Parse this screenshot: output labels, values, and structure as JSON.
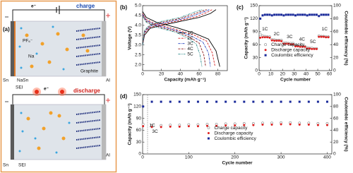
{
  "schematic": {
    "panel_label": "(a)",
    "top": {
      "electron": "e⁻",
      "state": "charge",
      "anion": "PF₆⁻",
      "cation": "Na",
      "cathode": "Graphite",
      "collector": "Al",
      "anode": "Sn",
      "alloy": "NaSn",
      "sei": "SEI"
    },
    "bottom": {
      "electron": "e⁻",
      "state": "discharge",
      "collector": "Al",
      "anode": "Sn",
      "sei": "SEI"
    }
  },
  "chart_data": [
    {
      "type": "line",
      "panel_label": "(b)",
      "xlabel": "Capacity (mAh g⁻¹)",
      "ylabel": "Voltage (V)",
      "xlim": [
        0,
        90
      ],
      "xticks": [
        0,
        20,
        40,
        60,
        80
      ],
      "ylim": [
        1.7,
        5.0
      ],
      "yticks": [
        {
          "value": 2,
          "label": "2.0"
        },
        2.5,
        {
          "value": 3,
          "label": "3.0"
        },
        3.5,
        {
          "value": 4,
          "label": "4.0"
        },
        4.5,
        {
          "value": 5,
          "label": "5.0"
        }
      ],
      "legend": "center",
      "series": [
        {
          "name": "1C",
          "color": "#000000",
          "dash": "solid",
          "x": [
            0,
            2,
            8,
            20,
            40,
            60,
            72,
            78,
            null,
            0,
            4,
            15,
            35,
            55,
            70,
            78,
            82
          ],
          "values": [
            3.0,
            3.5,
            3.85,
            4.0,
            4.2,
            4.4,
            4.6,
            4.8,
            null,
            4.7,
            4.4,
            4.15,
            3.9,
            3.6,
            3.3,
            2.7,
            1.9
          ]
        },
        {
          "name": "2C",
          "color": "#d62728",
          "dash": "dashed",
          "x": [
            0,
            2,
            8,
            20,
            40,
            58,
            68,
            74,
            null,
            0,
            4,
            15,
            35,
            55,
            68,
            74,
            77
          ],
          "values": [
            3.0,
            3.6,
            3.9,
            4.05,
            4.25,
            4.45,
            4.65,
            4.8,
            null,
            4.6,
            4.3,
            4.05,
            3.8,
            3.5,
            3.2,
            2.6,
            1.9
          ]
        },
        {
          "name": "3C",
          "color": "#1f3fbf",
          "dash": "dashdot",
          "x": [
            0,
            2,
            8,
            20,
            40,
            55,
            65,
            71,
            null,
            0,
            4,
            15,
            35,
            52,
            64,
            70,
            72
          ],
          "values": [
            3.0,
            3.65,
            3.95,
            4.1,
            4.3,
            4.5,
            4.68,
            4.8,
            null,
            4.55,
            4.25,
            4.0,
            3.75,
            3.45,
            3.15,
            2.6,
            1.9
          ]
        },
        {
          "name": "4C",
          "color": "#8b1a1a",
          "dash": "dashed",
          "x": [
            0,
            2,
            8,
            20,
            40,
            53,
            62,
            68,
            null,
            0,
            4,
            15,
            35,
            50,
            60,
            65,
            67
          ],
          "values": [
            3.0,
            3.7,
            4.0,
            4.15,
            4.35,
            4.55,
            4.7,
            4.8,
            null,
            4.5,
            4.2,
            3.95,
            3.7,
            3.4,
            3.1,
            2.5,
            1.9
          ]
        },
        {
          "name": "5C",
          "color": "#2a8a8a",
          "dash": "dashdotdot",
          "x": [
            0,
            2,
            8,
            20,
            40,
            50,
            58,
            64,
            null,
            0,
            4,
            15,
            35,
            48,
            57,
            61,
            63
          ],
          "values": [
            3.0,
            3.75,
            4.05,
            4.2,
            4.4,
            4.58,
            4.72,
            4.8,
            null,
            4.45,
            4.15,
            3.9,
            3.65,
            3.35,
            3.05,
            2.5,
            1.9
          ]
        }
      ]
    },
    {
      "type": "scatter",
      "panel_label": "(c)",
      "xlabel": "Cycle number",
      "ylabel": "Capacity (mAh g⁻¹)",
      "y2label": "Coulombic efficiency (%)",
      "xlim": [
        0,
        62
      ],
      "xticks": [
        0,
        10,
        20,
        30,
        40,
        50,
        60
      ],
      "ylim": [
        0,
        150
      ],
      "yticks": [
        0,
        30,
        60,
        90,
        120,
        150
      ],
      "y2lim": [
        0,
        100
      ],
      "y2ticks": [
        0,
        20,
        40,
        60,
        80,
        100
      ],
      "legend": "lower left",
      "annotations": [
        "1C",
        "2C",
        "3C",
        "4C",
        "5C",
        "1C"
      ],
      "x": [
        1,
        3,
        5,
        7,
        9,
        11,
        13,
        15,
        17,
        19,
        21,
        23,
        25,
        27,
        29,
        31,
        33,
        35,
        37,
        39,
        41,
        43,
        45,
        47,
        49,
        51,
        53,
        55,
        57,
        59
      ],
      "series": [
        {
          "name": "Charge capacity",
          "color": "#888888",
          "marker": "open-circle",
          "values": [
            84,
            80,
            79,
            78,
            78,
            72,
            71,
            70,
            70,
            70,
            64,
            64,
            63,
            63,
            63,
            58,
            57,
            57,
            56,
            56,
            53,
            52,
            52,
            51,
            51,
            80,
            79,
            79,
            78,
            78
          ]
        },
        {
          "name": "Discharge capacity",
          "color": "#e02020",
          "marker": "circle",
          "values": [
            76,
            77,
            77,
            77,
            76,
            70,
            69,
            69,
            69,
            68,
            62,
            62,
            62,
            61,
            61,
            56,
            56,
            55,
            55,
            55,
            51,
            51,
            50,
            50,
            50,
            78,
            78,
            78,
            77,
            77
          ]
        },
        {
          "name": "Coulombic efficiency",
          "color": "#1a2a9a",
          "marker": "square",
          "axis": "y2",
          "values": [
            80,
            85,
            86,
            86,
            86,
            85,
            86,
            86,
            86,
            86,
            85,
            86,
            86,
            86,
            86,
            85,
            86,
            86,
            86,
            86,
            85,
            86,
            86,
            86,
            86,
            84,
            86,
            86,
            86,
            86
          ]
        }
      ]
    },
    {
      "type": "scatter",
      "panel_label": "(d)",
      "xlabel": "Cycle number",
      "ylabel": "Capacity (mAh g⁻¹)",
      "y2label": "Coulombic efficiency (%)",
      "xlim": [
        0,
        410
      ],
      "xticks": [
        0,
        100,
        200,
        300,
        400
      ],
      "ylim": [
        0,
        150
      ],
      "yticks": [
        0,
        30,
        60,
        90,
        120,
        150
      ],
      "y2lim": [
        0,
        100
      ],
      "y2ticks": [
        0,
        20,
        40,
        60,
        80,
        100
      ],
      "legend": "lower center",
      "annotations": [
        "1C",
        "3C"
      ],
      "x": [
        1,
        20,
        40,
        60,
        80,
        100,
        120,
        140,
        160,
        180,
        200,
        220,
        240,
        260,
        280,
        300,
        320,
        340,
        360,
        380,
        400
      ],
      "series": [
        {
          "name": "Charge capacity",
          "color": "#888888",
          "marker": "open-circle",
          "values": [
            75,
            72,
            72,
            73,
            73,
            74,
            74,
            75,
            75,
            76,
            76,
            77,
            77,
            78,
            78,
            79,
            79,
            78,
            78,
            77,
            77
          ]
        },
        {
          "name": "Discharge capacity",
          "color": "#e02020",
          "marker": "circle",
          "values": [
            70,
            68,
            68,
            69,
            69,
            70,
            70,
            71,
            71,
            72,
            72,
            73,
            73,
            74,
            74,
            75,
            75,
            74,
            74,
            73,
            73
          ]
        },
        {
          "name": "Coulombic efficiency",
          "color": "#1a2a9a",
          "marker": "square",
          "axis": "y2",
          "values": [
            80,
            88,
            88,
            88,
            88,
            88,
            88,
            88,
            88,
            88,
            88,
            88,
            88,
            88,
            88,
            88,
            88,
            88,
            88,
            88,
            88
          ]
        }
      ]
    }
  ]
}
